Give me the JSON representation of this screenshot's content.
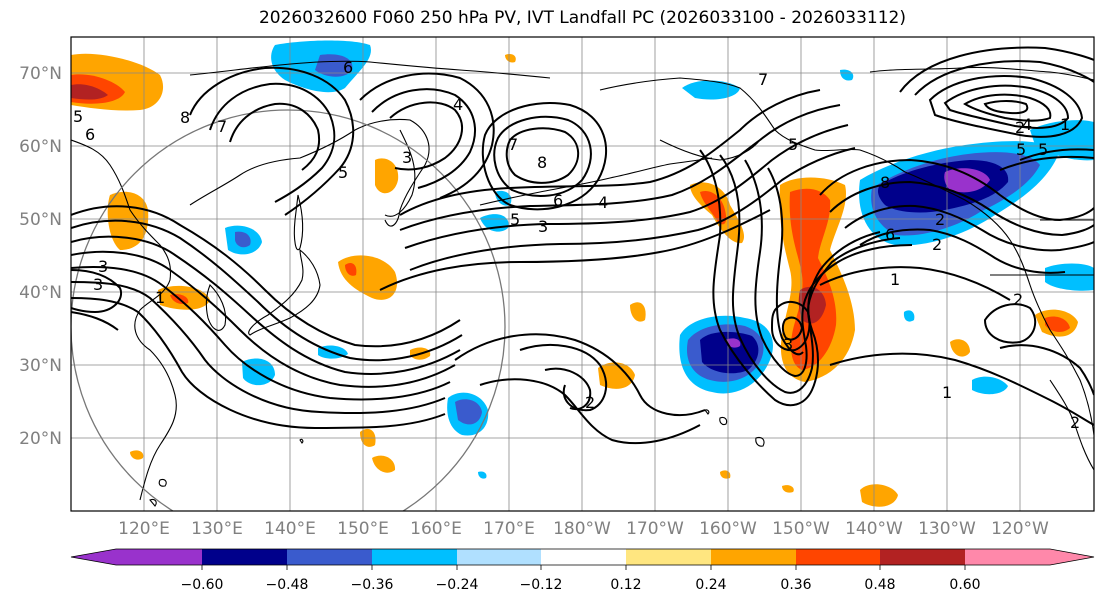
{
  "title": "2026032600 F060 250 hPa PV, IVT Landfall PC (2026033100 - 2026033112)",
  "latitude_labels": [
    "70°N",
    "60°N",
    "50°N",
    "40°N",
    "30°N",
    "20°N"
  ],
  "longitude_labels": [
    "120°E",
    "130°E",
    "140°E",
    "150°E",
    "160°E",
    "170°E",
    "180°W",
    "170°W",
    "160°W",
    "150°W",
    "140°W",
    "130°W",
    "120°W"
  ],
  "colorbar": {
    "tick_labels": [
      "−0.60",
      "−0.48",
      "−0.36",
      "−0.24",
      "−0.12",
      "0.12",
      "0.24",
      "0.36",
      "0.48",
      "0.60"
    ],
    "colors": [
      "#9932cc",
      "#00008b",
      "#3a5bcd",
      "#00bfff",
      "#b0e0ff",
      "#ffffff",
      "#ffe680",
      "#ffa500",
      "#ff4500",
      "#b22222",
      "#ff88aa"
    ]
  },
  "contour_labels": [
    "6",
    "8",
    "6",
    "5",
    "7",
    "4",
    "3",
    "5",
    "3",
    "7",
    "8",
    "6",
    "5",
    "3",
    "4",
    "5",
    "3",
    "7",
    "2",
    "5",
    "3",
    "8",
    "6",
    "5",
    "4",
    "1",
    "1",
    "2",
    "2",
    "1",
    "2",
    "1",
    "2",
    "2"
  ]
}
